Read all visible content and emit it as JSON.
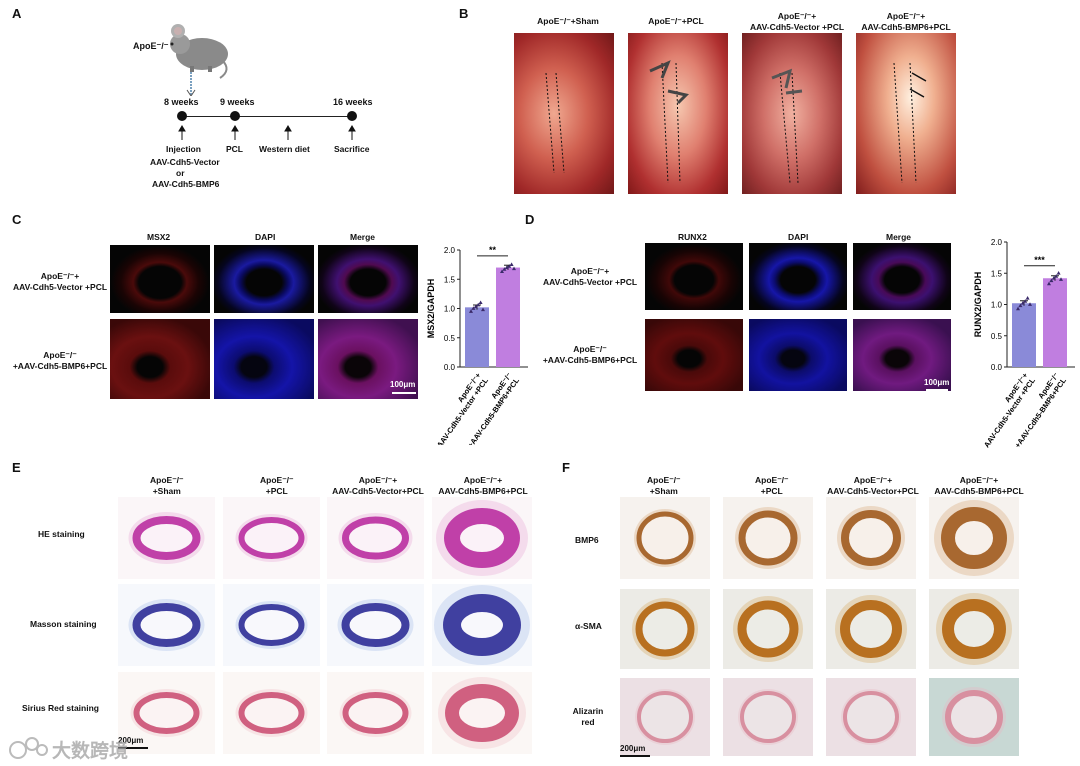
{
  "panels": {
    "a": "A",
    "b": "B",
    "c": "C",
    "d": "D",
    "e": "E",
    "f": "F"
  },
  "panel_a": {
    "mouse_label": "ApoE⁻/⁻",
    "timepoints": [
      "8 weeks",
      "9 weeks",
      "16 weeks"
    ],
    "events": {
      "injection": "Injection",
      "vector1": "AAV-Cdh5-Vector",
      "or": "or",
      "vector2": "AAV-Cdh5-BMP6",
      "pcl": "PCL",
      "diet": "Western diet",
      "sacrifice": "Sacrifice"
    }
  },
  "panel_b": {
    "titles": [
      "ApoE⁻/⁻+Sham",
      "ApoE⁻/⁻+PCL",
      "ApoE⁻/⁻+\nAAV-Cdh5-Vector +PCL",
      "ApoE⁻/⁻+\nAAV-Cdh5-BMP6+PCL"
    ]
  },
  "panel_c": {
    "cols": [
      "MSX2",
      "DAPI",
      "Merge"
    ],
    "rows": [
      "ApoE⁻/⁻+\nAAV-Cdh5-Vector +PCL",
      "ApoE⁻/⁻\n+AAV-Cdh5-BMP6+PCL"
    ],
    "scale": "100μm"
  },
  "panel_d": {
    "cols": [
      "RUNX2",
      "DAPI",
      "Merge"
    ],
    "rows": [
      "ApoE⁻/⁻+\nAAV-Cdh5-Vector +PCL",
      "ApoE⁻/⁻\n+AAV-Cdh5-BMP6+PCL"
    ],
    "scale": "100μm"
  },
  "panel_e": {
    "cols": [
      "ApoE⁻/⁻\n+Sham",
      "ApoE⁻/⁻\n+PCL",
      "ApoE⁻/⁻+\nAAV-Cdh5-Vector+PCL",
      "ApoE⁻/⁻+\nAAV-Cdh5-BMP6+PCL"
    ],
    "rows": [
      "HE staining",
      "Masson staining",
      "Sirius Red staining"
    ],
    "scale": "200μm"
  },
  "panel_f": {
    "cols": [
      "ApoE⁻/⁻\n+Sham",
      "ApoE⁻/⁻\n+PCL",
      "ApoE⁻/⁻+\nAAV-Cdh5-Vector+PCL",
      "ApoE⁻/⁻+\nAAV-Cdh5-BMP6+PCL"
    ],
    "rows": [
      "BMP6",
      "α-SMA",
      "Alizarin\nred"
    ],
    "scale": "200μm"
  },
  "watermark": "大数跨境",
  "colors": {
    "bar_vector": "#8a8ad8",
    "bar_bmp6": "#c07ee0",
    "dot": "#3a2a6a"
  },
  "chart_data": [
    {
      "type": "bar",
      "ylabel": "MSX2/GAPDH",
      "categories": [
        "ApoE⁻/⁻+\nAAV-Cdh5-Vector +PCL",
        "ApoE⁻/⁻\n+AAV-Cdh5-BMP6+PCL"
      ],
      "values": [
        1.02,
        1.7
      ],
      "errors": [
        0.04,
        0.04
      ],
      "points": [
        [
          0.95,
          1.0,
          1.03,
          1.06,
          1.1,
          0.98
        ],
        [
          1.63,
          1.67,
          1.7,
          1.72,
          1.75,
          1.68
        ]
      ],
      "significance": "**",
      "ylim": [
        0,
        2.0
      ],
      "yticks": [
        "0.0",
        "0.5",
        "1.0",
        "1.5",
        "2.0"
      ]
    },
    {
      "type": "bar",
      "ylabel": "RUNX2/GAPDH",
      "categories": [
        "ApoE⁻/⁻+\nAAV-Cdh5-Vector +PCL",
        "ApoE⁻/⁻\n+AAV-Cdh5-BMP6+PCL"
      ],
      "values": [
        1.02,
        1.42
      ],
      "errors": [
        0.04,
        0.04
      ],
      "points": [
        [
          0.93,
          0.98,
          1.02,
          1.05,
          1.1,
          1.0
        ],
        [
          1.33,
          1.38,
          1.42,
          1.45,
          1.5,
          1.4
        ]
      ],
      "significance": "***",
      "ylim": [
        0,
        2.0
      ],
      "yticks": [
        "0.0",
        "0.5",
        "1.0",
        "1.5",
        "2.0"
      ]
    }
  ]
}
